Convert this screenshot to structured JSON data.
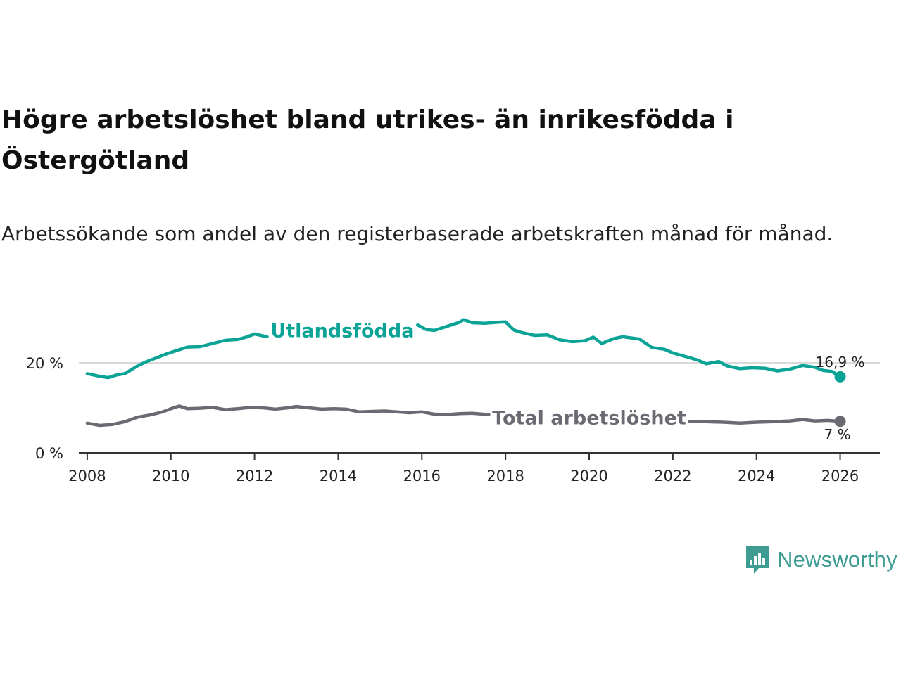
{
  "brand": {
    "name": "Newsworthy",
    "color": "#3f9c93"
  },
  "chart_data": {
    "type": "line",
    "title": "Högre arbetslöshet bland utrikes- än inrikesfödda i Östergötland",
    "subtitle": "Arbetssökande som andel av den registerbaserade arbetskraften månad för månad.",
    "xlabel": "",
    "ylabel": "",
    "xlim": [
      2007.8,
      2026.95
    ],
    "ylim": [
      0,
      35
    ],
    "x_ticks": [
      2008,
      2010,
      2012,
      2014,
      2016,
      2018,
      2020,
      2022,
      2024,
      2026
    ],
    "x_tick_labels": [
      "2008",
      "2010",
      "2012",
      "2014",
      "2016",
      "2018",
      "2020",
      "2022",
      "2024",
      "2026"
    ],
    "y_ticks": [
      0,
      20
    ],
    "y_tick_labels": [
      "0 %",
      "20 %"
    ],
    "grid": "horizontal",
    "series": [
      {
        "name": "Utlandsfödda",
        "color": "#0aa396",
        "end_label": "16,9 %",
        "label_gap": [
          2012.3,
          2015.9
        ],
        "points": [
          [
            2008.0,
            17.6
          ],
          [
            2008.3,
            17.0
          ],
          [
            2008.5,
            16.7
          ],
          [
            2008.7,
            17.3
          ],
          [
            2008.9,
            17.6
          ],
          [
            2009.2,
            19.3
          ],
          [
            2009.4,
            20.2
          ],
          [
            2009.6,
            20.9
          ],
          [
            2009.9,
            22.0
          ],
          [
            2010.2,
            22.9
          ],
          [
            2010.4,
            23.5
          ],
          [
            2010.7,
            23.6
          ],
          [
            2011.0,
            24.3
          ],
          [
            2011.3,
            25.0
          ],
          [
            2011.6,
            25.2
          ],
          [
            2011.8,
            25.7
          ],
          [
            2012.0,
            26.4
          ],
          [
            2012.3,
            25.8
          ],
          [
            2015.9,
            28.4
          ],
          [
            2016.1,
            27.4
          ],
          [
            2016.3,
            27.2
          ],
          [
            2016.6,
            28.1
          ],
          [
            2016.9,
            29.0
          ],
          [
            2017.0,
            29.6
          ],
          [
            2017.2,
            28.9
          ],
          [
            2017.5,
            28.8
          ],
          [
            2017.8,
            29.0
          ],
          [
            2018.0,
            29.1
          ],
          [
            2018.2,
            27.3
          ],
          [
            2018.4,
            26.7
          ],
          [
            2018.7,
            26.1
          ],
          [
            2019.0,
            26.2
          ],
          [
            2019.3,
            25.1
          ],
          [
            2019.6,
            24.7
          ],
          [
            2019.9,
            24.9
          ],
          [
            2020.1,
            25.7
          ],
          [
            2020.3,
            24.3
          ],
          [
            2020.6,
            25.4
          ],
          [
            2020.8,
            25.8
          ],
          [
            2021.2,
            25.3
          ],
          [
            2021.5,
            23.4
          ],
          [
            2021.8,
            23.0
          ],
          [
            2022.0,
            22.2
          ],
          [
            2022.3,
            21.4
          ],
          [
            2022.6,
            20.6
          ],
          [
            2022.8,
            19.8
          ],
          [
            2023.1,
            20.3
          ],
          [
            2023.3,
            19.3
          ],
          [
            2023.6,
            18.7
          ],
          [
            2023.9,
            18.9
          ],
          [
            2024.2,
            18.8
          ],
          [
            2024.5,
            18.2
          ],
          [
            2024.8,
            18.6
          ],
          [
            2025.1,
            19.4
          ],
          [
            2025.4,
            19.0
          ],
          [
            2025.6,
            18.3
          ],
          [
            2025.8,
            18.1
          ],
          [
            2026.0,
            16.9
          ]
        ]
      },
      {
        "name": "Total arbetslöshet",
        "color": "#6b6a73",
        "end_label": "7 %",
        "label_gap": [
          2017.6,
          2022.4
        ],
        "points": [
          [
            2008.0,
            6.6
          ],
          [
            2008.3,
            6.1
          ],
          [
            2008.6,
            6.3
          ],
          [
            2008.9,
            6.9
          ],
          [
            2009.2,
            7.9
          ],
          [
            2009.5,
            8.4
          ],
          [
            2009.8,
            9.1
          ],
          [
            2010.0,
            9.8
          ],
          [
            2010.2,
            10.4
          ],
          [
            2010.4,
            9.8
          ],
          [
            2010.7,
            9.9
          ],
          [
            2011.0,
            10.1
          ],
          [
            2011.3,
            9.6
          ],
          [
            2011.6,
            9.8
          ],
          [
            2011.9,
            10.1
          ],
          [
            2012.2,
            10.0
          ],
          [
            2012.5,
            9.7
          ],
          [
            2012.8,
            10.0
          ],
          [
            2013.0,
            10.3
          ],
          [
            2013.3,
            10.0
          ],
          [
            2013.6,
            9.7
          ],
          [
            2013.9,
            9.8
          ],
          [
            2014.2,
            9.7
          ],
          [
            2014.5,
            9.1
          ],
          [
            2014.8,
            9.2
          ],
          [
            2015.1,
            9.3
          ],
          [
            2015.4,
            9.1
          ],
          [
            2015.7,
            8.9
          ],
          [
            2016.0,
            9.1
          ],
          [
            2016.3,
            8.6
          ],
          [
            2016.6,
            8.5
          ],
          [
            2016.9,
            8.7
          ],
          [
            2017.2,
            8.8
          ],
          [
            2017.6,
            8.5
          ],
          [
            2022.4,
            7.0
          ],
          [
            2022.8,
            6.9
          ],
          [
            2023.2,
            6.8
          ],
          [
            2023.6,
            6.6
          ],
          [
            2024.0,
            6.8
          ],
          [
            2024.4,
            6.9
          ],
          [
            2024.8,
            7.1
          ],
          [
            2025.1,
            7.4
          ],
          [
            2025.4,
            7.1
          ],
          [
            2025.7,
            7.2
          ],
          [
            2026.0,
            7.0
          ]
        ]
      }
    ]
  }
}
